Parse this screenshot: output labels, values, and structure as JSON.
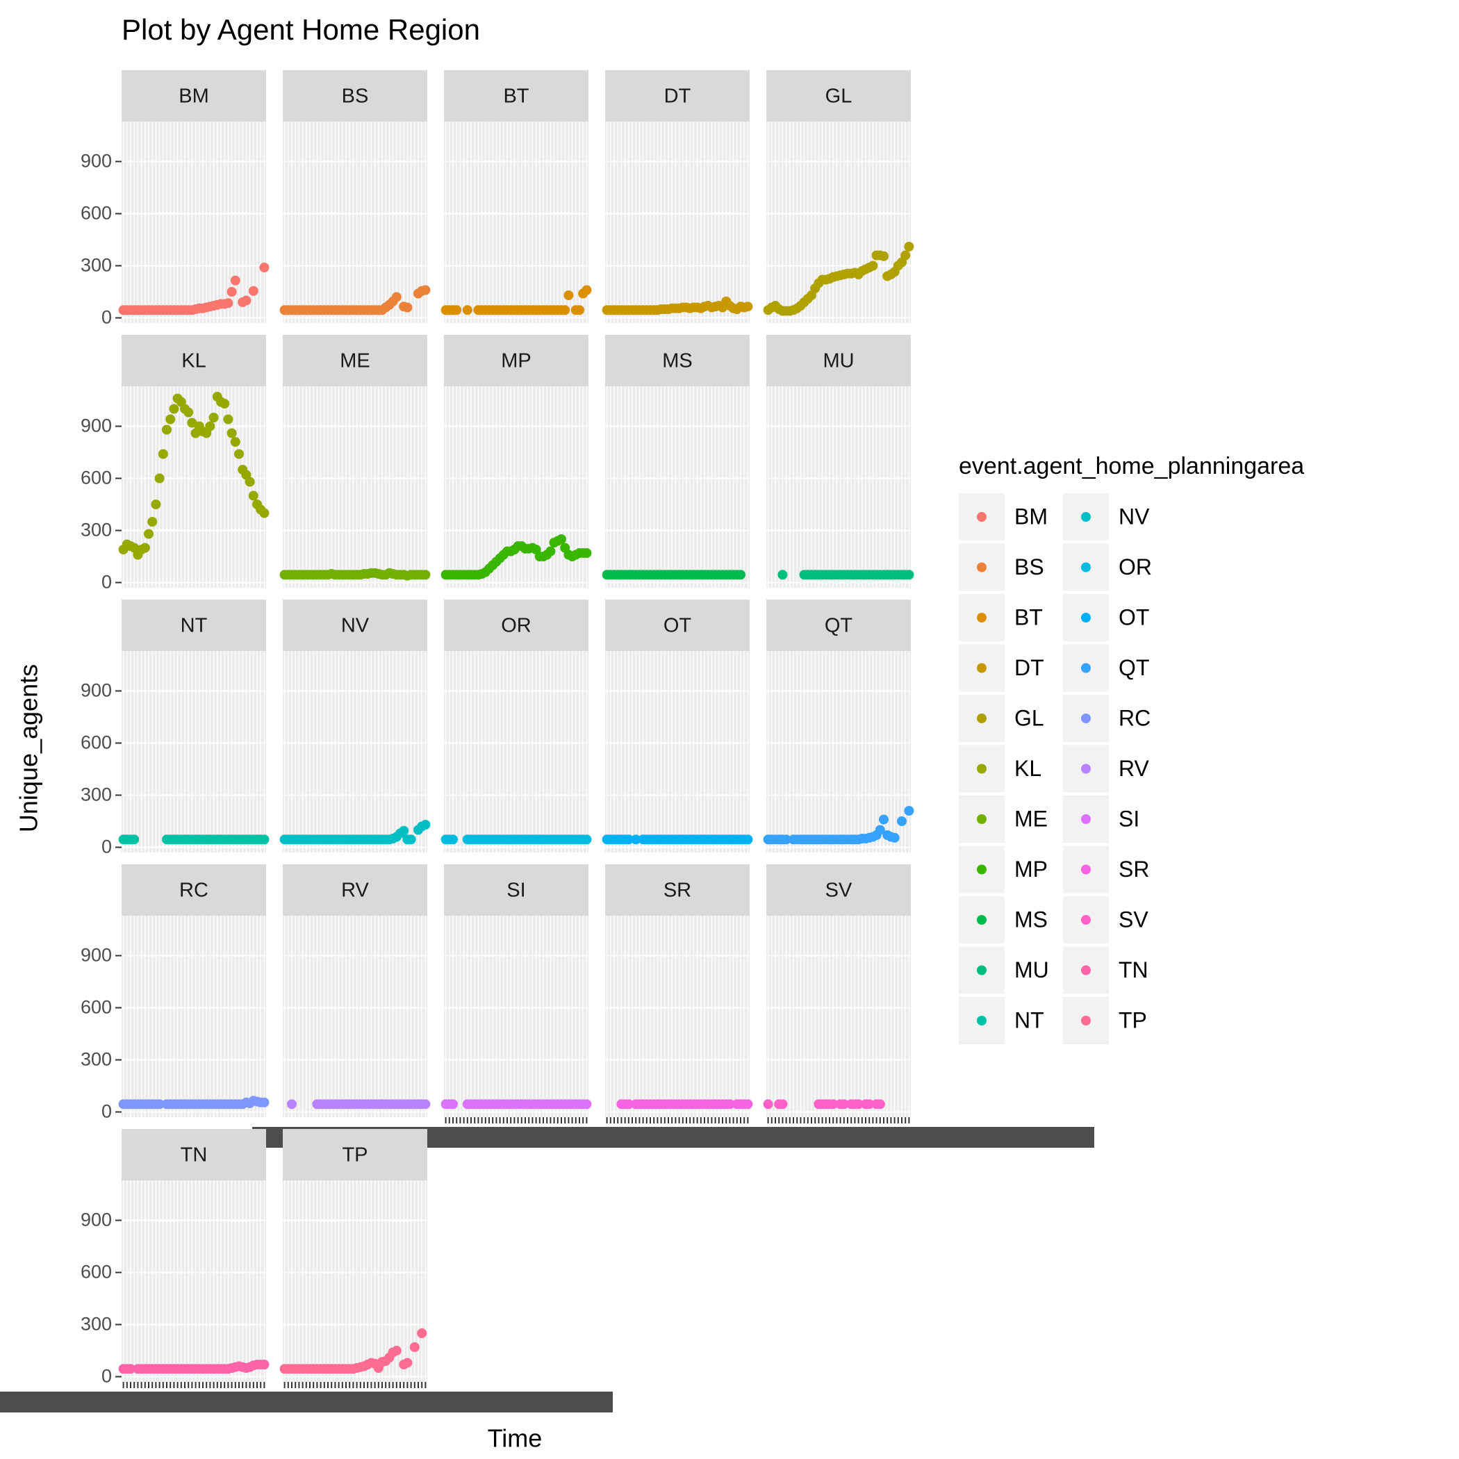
{
  "chart_data": {
    "type": "scatter",
    "title": "Plot by Agent Home Region",
    "x_label": "Time",
    "y_label": "Unique_agents",
    "legend_title": "event.agent_home_planningarea",
    "grid": true,
    "categories": [
      null,
      null,
      null,
      null,
      null,
      null,
      null,
      null,
      null,
      null,
      null,
      null,
      null,
      null,
      null,
      null,
      null,
      null,
      null,
      null,
      null,
      null,
      null,
      null,
      null,
      null,
      null,
      null,
      null,
      null,
      null,
      null,
      null,
      null,
      null,
      null,
      null,
      null,
      null,
      null
    ],
    "ylim": [
      -30,
      1130
    ],
    "yticks": [
      0,
      300,
      600,
      900
    ],
    "series": [
      {
        "name": "BM",
        "color": "#F8766D",
        "values": [
          45,
          45,
          45,
          45,
          45,
          45,
          45,
          45,
          45,
          45,
          45,
          45,
          45,
          45,
          45,
          45,
          45,
          45,
          45,
          45,
          50,
          55,
          55,
          60,
          65,
          70,
          75,
          80,
          80,
          85,
          150,
          215,
          null,
          90,
          100,
          null,
          155,
          null,
          null,
          290
        ]
      },
      {
        "name": "BS",
        "color": "#EC8239",
        "values": [
          45,
          45,
          45,
          45,
          45,
          45,
          45,
          45,
          45,
          45,
          45,
          45,
          45,
          45,
          45,
          45,
          45,
          45,
          45,
          45,
          45,
          45,
          45,
          45,
          45,
          45,
          45,
          45,
          60,
          75,
          95,
          120,
          null,
          65,
          60,
          null,
          null,
          140,
          155,
          160
        ]
      },
      {
        "name": "BT",
        "color": "#DB8E00",
        "values": [
          45,
          45,
          45,
          45,
          null,
          null,
          45,
          null,
          null,
          45,
          45,
          45,
          45,
          45,
          45,
          45,
          45,
          45,
          45,
          45,
          45,
          45,
          45,
          45,
          45,
          45,
          45,
          45,
          45,
          45,
          45,
          45,
          45,
          45,
          130,
          null,
          45,
          45,
          140,
          160
        ]
      },
      {
        "name": "DT",
        "color": "#C79800",
        "values": [
          45,
          45,
          45,
          45,
          45,
          45,
          45,
          45,
          45,
          45,
          45,
          45,
          45,
          45,
          45,
          50,
          50,
          50,
          55,
          55,
          55,
          60,
          60,
          55,
          60,
          60,
          55,
          65,
          70,
          60,
          65,
          70,
          60,
          95,
          70,
          55,
          50,
          65,
          60,
          65
        ]
      },
      {
        "name": "GL",
        "color": "#AFA100",
        "values": [
          45,
          60,
          70,
          50,
          40,
          40,
          40,
          45,
          55,
          70,
          90,
          110,
          130,
          170,
          200,
          220,
          220,
          225,
          235,
          240,
          245,
          250,
          255,
          255,
          260,
          250,
          270,
          280,
          290,
          300,
          360,
          360,
          355,
          240,
          250,
          265,
          300,
          320,
          360,
          410
        ]
      },
      {
        "name": "KL",
        "color": "#96A900",
        "values": [
          190,
          220,
          210,
          200,
          160,
          190,
          200,
          280,
          350,
          450,
          600,
          740,
          880,
          940,
          1000,
          1060,
          1040,
          1000,
          980,
          920,
          860,
          900,
          870,
          860,
          900,
          950,
          1070,
          1040,
          1030,
          940,
          860,
          810,
          740,
          650,
          620,
          580,
          500,
          450,
          420,
          400
        ]
      },
      {
        "name": "ME",
        "color": "#72B000",
        "values": [
          45,
          45,
          45,
          45,
          45,
          45,
          45,
          45,
          45,
          45,
          45,
          45,
          45,
          50,
          45,
          45,
          45,
          45,
          45,
          45,
          45,
          45,
          50,
          50,
          55,
          55,
          50,
          45,
          45,
          55,
          50,
          45,
          45,
          45,
          40,
          45,
          45,
          45,
          45,
          45
        ]
      },
      {
        "name": "MP",
        "color": "#39B600",
        "values": [
          45,
          45,
          45,
          45,
          45,
          45,
          45,
          45,
          45,
          45,
          50,
          60,
          80,
          100,
          120,
          140,
          160,
          180,
          180,
          190,
          210,
          210,
          195,
          195,
          200,
          190,
          150,
          150,
          160,
          180,
          230,
          240,
          250,
          200,
          160,
          150,
          160,
          170,
          170,
          170
        ]
      },
      {
        "name": "MS",
        "color": "#00BB4E",
        "values": [
          45,
          45,
          45,
          45,
          45,
          45,
          45,
          45,
          45,
          45,
          45,
          45,
          45,
          45,
          45,
          45,
          45,
          45,
          45,
          45,
          45,
          45,
          45,
          45,
          45,
          45,
          45,
          45,
          45,
          45,
          45,
          45,
          45,
          45,
          45,
          45,
          45,
          45,
          null,
          null
        ]
      },
      {
        "name": "MU",
        "color": "#00BF7D",
        "values": [
          null,
          null,
          null,
          null,
          45,
          null,
          null,
          null,
          null,
          null,
          45,
          45,
          45,
          45,
          45,
          45,
          45,
          45,
          45,
          45,
          45,
          45,
          45,
          45,
          45,
          45,
          45,
          45,
          45,
          45,
          45,
          45,
          45,
          45,
          45,
          45,
          45,
          45,
          45,
          45
        ]
      },
      {
        "name": "NT",
        "color": "#00C1A3",
        "values": [
          45,
          45,
          45,
          45,
          null,
          null,
          null,
          null,
          null,
          null,
          null,
          null,
          45,
          45,
          45,
          45,
          45,
          45,
          45,
          45,
          45,
          45,
          45,
          45,
          45,
          45,
          45,
          45,
          45,
          45,
          45,
          45,
          45,
          45,
          45,
          45,
          45,
          45,
          45,
          45
        ]
      },
      {
        "name": "NV",
        "color": "#00BFC4",
        "values": [
          45,
          45,
          45,
          45,
          45,
          45,
          45,
          45,
          45,
          45,
          45,
          45,
          45,
          45,
          45,
          45,
          45,
          45,
          45,
          45,
          45,
          45,
          45,
          45,
          45,
          45,
          45,
          45,
          45,
          45,
          50,
          60,
          80,
          95,
          45,
          45,
          null,
          100,
          120,
          130
        ]
      },
      {
        "name": "OR",
        "color": "#00BAE0",
        "values": [
          45,
          45,
          45,
          null,
          null,
          null,
          45,
          45,
          45,
          45,
          45,
          45,
          45,
          45,
          45,
          45,
          45,
          45,
          45,
          45,
          45,
          45,
          45,
          45,
          45,
          45,
          45,
          45,
          45,
          45,
          45,
          45,
          45,
          45,
          45,
          45,
          45,
          45,
          45,
          45
        ]
      },
      {
        "name": "OT",
        "color": "#00B0F6",
        "values": [
          45,
          45,
          45,
          45,
          45,
          45,
          45,
          null,
          45,
          null,
          45,
          45,
          45,
          45,
          45,
          45,
          45,
          45,
          45,
          45,
          45,
          45,
          45,
          45,
          45,
          45,
          45,
          45,
          45,
          45,
          45,
          45,
          45,
          45,
          45,
          45,
          45,
          45,
          45,
          45
        ]
      },
      {
        "name": "QT",
        "color": "#35A2FF",
        "values": [
          45,
          45,
          45,
          45,
          45,
          45,
          null,
          45,
          45,
          45,
          45,
          45,
          45,
          45,
          45,
          45,
          45,
          45,
          45,
          45,
          45,
          45,
          45,
          45,
          45,
          45,
          50,
          50,
          55,
          60,
          70,
          100,
          160,
          70,
          60,
          55,
          null,
          150,
          null,
          210
        ]
      },
      {
        "name": "RC",
        "color": "#7F96FF",
        "values": [
          45,
          45,
          45,
          45,
          45,
          45,
          45,
          45,
          45,
          45,
          45,
          null,
          45,
          45,
          45,
          45,
          45,
          45,
          45,
          45,
          45,
          45,
          45,
          45,
          45,
          45,
          45,
          45,
          45,
          45,
          45,
          45,
          45,
          45,
          55,
          50,
          65,
          60,
          55,
          55
        ]
      },
      {
        "name": "RV",
        "color": "#B983FF",
        "values": [
          null,
          null,
          45,
          null,
          null,
          null,
          null,
          null,
          null,
          45,
          45,
          45,
          45,
          45,
          45,
          45,
          45,
          45,
          45,
          45,
          45,
          45,
          45,
          45,
          45,
          45,
          45,
          45,
          45,
          45,
          45,
          45,
          45,
          45,
          45,
          45,
          45,
          45,
          45,
          45
        ]
      },
      {
        "name": "SI",
        "color": "#DB72FB",
        "values": [
          45,
          45,
          45,
          null,
          null,
          null,
          45,
          45,
          45,
          45,
          45,
          45,
          45,
          45,
          45,
          45,
          45,
          45,
          45,
          45,
          45,
          45,
          45,
          45,
          45,
          45,
          45,
          45,
          45,
          45,
          45,
          45,
          45,
          45,
          45,
          45,
          45,
          45,
          45,
          45
        ]
      },
      {
        "name": "SR",
        "color": "#F464E2",
        "values": [
          null,
          null,
          null,
          null,
          45,
          45,
          45,
          null,
          45,
          45,
          45,
          45,
          45,
          45,
          45,
          45,
          45,
          45,
          45,
          45,
          45,
          45,
          45,
          45,
          45,
          45,
          45,
          45,
          45,
          45,
          45,
          45,
          45,
          45,
          45,
          null,
          45,
          45,
          45,
          45
        ]
      },
      {
        "name": "SV",
        "color": "#FF61C9",
        "values": [
          45,
          null,
          null,
          45,
          45,
          null,
          null,
          null,
          null,
          null,
          null,
          null,
          null,
          null,
          45,
          45,
          45,
          45,
          45,
          null,
          45,
          45,
          null,
          45,
          45,
          45,
          null,
          45,
          45,
          null,
          45,
          45,
          null,
          null,
          null,
          null,
          null,
          null,
          null,
          null
        ]
      },
      {
        "name": "TN",
        "color": "#FF63AA",
        "values": [
          45,
          45,
          45,
          null,
          45,
          45,
          45,
          45,
          45,
          45,
          45,
          45,
          45,
          45,
          45,
          45,
          45,
          45,
          45,
          45,
          45,
          45,
          45,
          45,
          45,
          45,
          45,
          45,
          45,
          45,
          50,
          55,
          60,
          55,
          50,
          55,
          65,
          70,
          70,
          70
        ]
      },
      {
        "name": "TP",
        "color": "#FF6C91",
        "values": [
          45,
          45,
          45,
          45,
          45,
          45,
          45,
          45,
          45,
          45,
          45,
          45,
          45,
          45,
          45,
          45,
          45,
          45,
          45,
          45,
          50,
          55,
          60,
          70,
          80,
          75,
          50,
          85,
          90,
          110,
          140,
          150,
          null,
          70,
          80,
          null,
          170,
          null,
          250,
          null
        ]
      }
    ]
  }
}
